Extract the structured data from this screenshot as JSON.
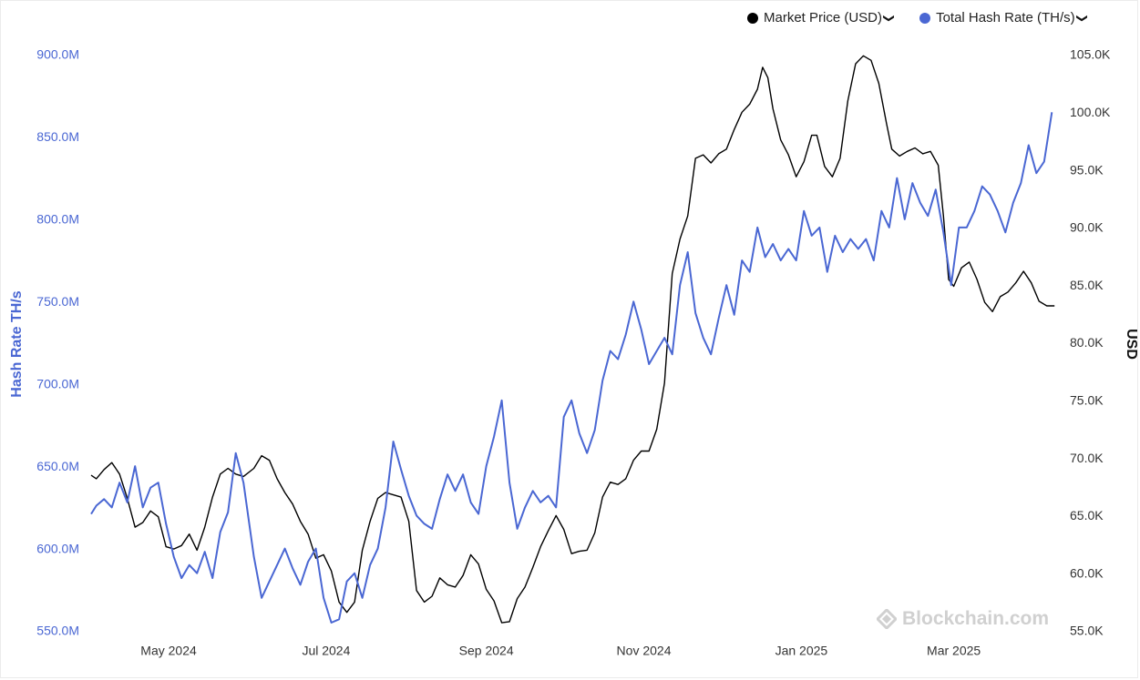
{
  "legend": {
    "price_label": "Market Price (USD)",
    "hash_label": "Total Hash Rate (TH/s)",
    "chevron": "❯"
  },
  "watermark": {
    "text": "Blockchain.com"
  },
  "colors": {
    "price": "#000000",
    "hash": "#4a67d3",
    "left_axis": "#4a67d3",
    "right_axis": "#333333"
  },
  "icons": {
    "watermark": "blockchain-logo-icon",
    "dropdown": "chevron-down-icon"
  },
  "chart_data": {
    "type": "line",
    "x_range": [
      "2024-04-01",
      "2025-04-10"
    ],
    "x_ticks": [
      {
        "date": "2024-05-01",
        "label": "May 2024"
      },
      {
        "date": "2024-07-01",
        "label": "Jul 2024"
      },
      {
        "date": "2024-09-01",
        "label": "Sep 2024"
      },
      {
        "date": "2024-11-01",
        "label": "Nov 2024"
      },
      {
        "date": "2025-01-01",
        "label": "Jan 2025"
      },
      {
        "date": "2025-03-01",
        "label": "Mar 2025"
      }
    ],
    "y_left": {
      "label": "Hash Rate TH/s",
      "range": [
        550,
        900
      ],
      "unit": "M",
      "ticks": [
        "550.0M",
        "600.0M",
        "650.0M",
        "700.0M",
        "750.0M",
        "800.0M",
        "850.0M",
        "900.0M"
      ]
    },
    "y_right": {
      "label": "USD",
      "range": [
        55,
        105
      ],
      "unit": "K",
      "ticks": [
        "55.0K",
        "60.0K",
        "65.0K",
        "70.0K",
        "75.0K",
        "80.0K",
        "85.0K",
        "90.0K",
        "95.0K",
        "100.0K",
        "105.0K"
      ]
    },
    "series": [
      {
        "name": "Market Price (USD)",
        "axis": "right",
        "color": "#000000",
        "unit": "thousand USD",
        "points": [
          [
            "2024-04-01",
            68.5
          ],
          [
            "2024-04-03",
            68.2
          ],
          [
            "2024-04-06",
            69.0
          ],
          [
            "2024-04-09",
            69.6
          ],
          [
            "2024-04-12",
            68.6
          ],
          [
            "2024-04-15",
            66.5
          ],
          [
            "2024-04-18",
            64.0
          ],
          [
            "2024-04-21",
            64.4
          ],
          [
            "2024-04-24",
            65.4
          ],
          [
            "2024-04-27",
            64.9
          ],
          [
            "2024-04-30",
            62.3
          ],
          [
            "2024-05-03",
            62.1
          ],
          [
            "2024-05-06",
            62.4
          ],
          [
            "2024-05-09",
            63.4
          ],
          [
            "2024-05-12",
            62.0
          ],
          [
            "2024-05-15",
            64.0
          ],
          [
            "2024-05-18",
            66.6
          ],
          [
            "2024-05-21",
            68.6
          ],
          [
            "2024-05-24",
            69.1
          ],
          [
            "2024-05-27",
            68.6
          ],
          [
            "2024-05-30",
            68.4
          ],
          [
            "2024-06-03",
            69.1
          ],
          [
            "2024-06-06",
            70.2
          ],
          [
            "2024-06-09",
            69.8
          ],
          [
            "2024-06-12",
            68.2
          ],
          [
            "2024-06-15",
            67.0
          ],
          [
            "2024-06-18",
            66.0
          ],
          [
            "2024-06-21",
            64.5
          ],
          [
            "2024-06-24",
            63.4
          ],
          [
            "2024-06-27",
            61.3
          ],
          [
            "2024-06-30",
            61.6
          ],
          [
            "2024-07-03",
            60.2
          ],
          [
            "2024-07-06",
            57.5
          ],
          [
            "2024-07-09",
            56.6
          ],
          [
            "2024-07-12",
            57.5
          ],
          [
            "2024-07-15",
            62.0
          ],
          [
            "2024-07-18",
            64.5
          ],
          [
            "2024-07-21",
            66.5
          ],
          [
            "2024-07-24",
            67.0
          ],
          [
            "2024-07-27",
            66.8
          ],
          [
            "2024-07-30",
            66.6
          ],
          [
            "2024-08-02",
            64.5
          ],
          [
            "2024-08-05",
            58.5
          ],
          [
            "2024-08-08",
            57.5
          ],
          [
            "2024-08-11",
            58.0
          ],
          [
            "2024-08-14",
            59.6
          ],
          [
            "2024-08-17",
            59.0
          ],
          [
            "2024-08-20",
            58.8
          ],
          [
            "2024-08-23",
            59.8
          ],
          [
            "2024-08-26",
            61.6
          ],
          [
            "2024-08-29",
            60.8
          ],
          [
            "2024-09-01",
            58.6
          ],
          [
            "2024-09-04",
            57.6
          ],
          [
            "2024-09-07",
            55.7
          ],
          [
            "2024-09-10",
            55.8
          ],
          [
            "2024-09-13",
            57.8
          ],
          [
            "2024-09-16",
            58.8
          ],
          [
            "2024-09-19",
            60.5
          ],
          [
            "2024-09-22",
            62.3
          ],
          [
            "2024-09-25",
            63.7
          ],
          [
            "2024-09-28",
            65.0
          ],
          [
            "2024-10-01",
            63.8
          ],
          [
            "2024-10-04",
            61.7
          ],
          [
            "2024-10-07",
            61.9
          ],
          [
            "2024-10-10",
            62.0
          ],
          [
            "2024-10-13",
            63.5
          ],
          [
            "2024-10-16",
            66.6
          ],
          [
            "2024-10-19",
            67.9
          ],
          [
            "2024-10-22",
            67.7
          ],
          [
            "2024-10-25",
            68.2
          ],
          [
            "2024-10-28",
            69.8
          ],
          [
            "2024-10-31",
            70.6
          ],
          [
            "2024-11-03",
            70.6
          ],
          [
            "2024-11-06",
            72.5
          ],
          [
            "2024-11-09",
            76.5
          ],
          [
            "2024-11-12",
            86.0
          ],
          [
            "2024-11-15",
            89.0
          ],
          [
            "2024-11-18",
            91.0
          ],
          [
            "2024-11-21",
            96.0
          ],
          [
            "2024-11-24",
            96.3
          ],
          [
            "2024-11-27",
            95.6
          ],
          [
            "2024-11-30",
            96.4
          ],
          [
            "2024-12-03",
            96.8
          ],
          [
            "2024-12-06",
            98.5
          ],
          [
            "2024-12-09",
            100.0
          ],
          [
            "2024-12-12",
            100.7
          ],
          [
            "2024-12-15",
            102.0
          ],
          [
            "2024-12-17",
            103.9
          ],
          [
            "2024-12-19",
            103.0
          ],
          [
            "2024-12-21",
            100.3
          ],
          [
            "2024-12-24",
            97.6
          ],
          [
            "2024-12-27",
            96.3
          ],
          [
            "2024-12-30",
            94.4
          ],
          [
            "2025-01-02",
            95.7
          ],
          [
            "2025-01-05",
            98.0
          ],
          [
            "2025-01-07",
            98.0
          ],
          [
            "2025-01-10",
            95.3
          ],
          [
            "2025-01-13",
            94.4
          ],
          [
            "2025-01-16",
            96.0
          ],
          [
            "2025-01-19",
            101.0
          ],
          [
            "2025-01-22",
            104.2
          ],
          [
            "2025-01-25",
            104.9
          ],
          [
            "2025-01-28",
            104.5
          ],
          [
            "2025-01-31",
            102.5
          ],
          [
            "2025-02-03",
            99.0
          ],
          [
            "2025-02-05",
            96.8
          ],
          [
            "2025-02-08",
            96.2
          ],
          [
            "2025-02-11",
            96.6
          ],
          [
            "2025-02-14",
            96.9
          ],
          [
            "2025-02-17",
            96.4
          ],
          [
            "2025-02-20",
            96.6
          ],
          [
            "2025-02-23",
            95.4
          ],
          [
            "2025-02-25",
            91.0
          ],
          [
            "2025-02-27",
            85.5
          ],
          [
            "2025-03-01",
            84.9
          ],
          [
            "2025-03-04",
            86.5
          ],
          [
            "2025-03-07",
            87.0
          ],
          [
            "2025-03-10",
            85.5
          ],
          [
            "2025-03-13",
            83.5
          ],
          [
            "2025-03-16",
            82.7
          ],
          [
            "2025-03-19",
            84.0
          ],
          [
            "2025-03-22",
            84.4
          ],
          [
            "2025-03-25",
            85.2
          ],
          [
            "2025-03-28",
            86.2
          ],
          [
            "2025-03-31",
            85.2
          ],
          [
            "2025-04-03",
            83.6
          ],
          [
            "2025-04-06",
            83.2
          ],
          [
            "2025-04-09",
            83.2
          ]
        ]
      },
      {
        "name": "Total Hash Rate (TH/s)",
        "axis": "left",
        "color": "#4a67d3",
        "unit": "million TH/s",
        "points": [
          [
            "2024-04-01",
            621
          ],
          [
            "2024-04-03",
            626
          ],
          [
            "2024-04-06",
            630
          ],
          [
            "2024-04-09",
            625
          ],
          [
            "2024-04-12",
            640
          ],
          [
            "2024-04-15",
            628
          ],
          [
            "2024-04-18",
            650
          ],
          [
            "2024-04-21",
            625
          ],
          [
            "2024-04-24",
            637
          ],
          [
            "2024-04-27",
            640
          ],
          [
            "2024-04-30",
            615
          ],
          [
            "2024-05-03",
            595
          ],
          [
            "2024-05-06",
            582
          ],
          [
            "2024-05-09",
            590
          ],
          [
            "2024-05-12",
            585
          ],
          [
            "2024-05-15",
            598
          ],
          [
            "2024-05-18",
            582
          ],
          [
            "2024-05-21",
            610
          ],
          [
            "2024-05-24",
            622
          ],
          [
            "2024-05-27",
            658
          ],
          [
            "2024-05-30",
            640
          ],
          [
            "2024-06-03",
            595
          ],
          [
            "2024-06-06",
            570
          ],
          [
            "2024-06-09",
            580
          ],
          [
            "2024-06-12",
            590
          ],
          [
            "2024-06-15",
            600
          ],
          [
            "2024-06-18",
            588
          ],
          [
            "2024-06-21",
            578
          ],
          [
            "2024-06-24",
            592
          ],
          [
            "2024-06-27",
            600
          ],
          [
            "2024-06-30",
            570
          ],
          [
            "2024-07-03",
            555
          ],
          [
            "2024-07-06",
            557
          ],
          [
            "2024-07-09",
            580
          ],
          [
            "2024-07-12",
            585
          ],
          [
            "2024-07-15",
            570
          ],
          [
            "2024-07-18",
            590
          ],
          [
            "2024-07-21",
            600
          ],
          [
            "2024-07-24",
            625
          ],
          [
            "2024-07-27",
            665
          ],
          [
            "2024-07-30",
            648
          ],
          [
            "2024-08-02",
            632
          ],
          [
            "2024-08-05",
            620
          ],
          [
            "2024-08-08",
            615
          ],
          [
            "2024-08-11",
            612
          ],
          [
            "2024-08-14",
            630
          ],
          [
            "2024-08-17",
            645
          ],
          [
            "2024-08-20",
            635
          ],
          [
            "2024-08-23",
            645
          ],
          [
            "2024-08-26",
            628
          ],
          [
            "2024-08-29",
            621
          ],
          [
            "2024-09-01",
            650
          ],
          [
            "2024-09-04",
            668
          ],
          [
            "2024-09-07",
            690
          ],
          [
            "2024-09-10",
            640
          ],
          [
            "2024-09-13",
            612
          ],
          [
            "2024-09-16",
            625
          ],
          [
            "2024-09-19",
            635
          ],
          [
            "2024-09-22",
            628
          ],
          [
            "2024-09-25",
            632
          ],
          [
            "2024-09-28",
            625
          ],
          [
            "2024-10-01",
            680
          ],
          [
            "2024-10-04",
            690
          ],
          [
            "2024-10-07",
            670
          ],
          [
            "2024-10-10",
            658
          ],
          [
            "2024-10-13",
            672
          ],
          [
            "2024-10-16",
            702
          ],
          [
            "2024-10-19",
            720
          ],
          [
            "2024-10-22",
            715
          ],
          [
            "2024-10-25",
            730
          ],
          [
            "2024-10-28",
            750
          ],
          [
            "2024-10-31",
            733
          ],
          [
            "2024-11-03",
            712
          ],
          [
            "2024-11-06",
            720
          ],
          [
            "2024-11-09",
            728
          ],
          [
            "2024-11-12",
            718
          ],
          [
            "2024-11-15",
            760
          ],
          [
            "2024-11-18",
            780
          ],
          [
            "2024-11-21",
            743
          ],
          [
            "2024-11-24",
            728
          ],
          [
            "2024-11-27",
            718
          ],
          [
            "2024-11-30",
            740
          ],
          [
            "2024-12-03",
            760
          ],
          [
            "2024-12-06",
            742
          ],
          [
            "2024-12-09",
            775
          ],
          [
            "2024-12-12",
            768
          ],
          [
            "2024-12-15",
            795
          ],
          [
            "2024-12-18",
            777
          ],
          [
            "2024-12-21",
            785
          ],
          [
            "2024-12-24",
            775
          ],
          [
            "2024-12-27",
            782
          ],
          [
            "2024-12-30",
            775
          ],
          [
            "2025-01-02",
            805
          ],
          [
            "2025-01-05",
            790
          ],
          [
            "2025-01-08",
            795
          ],
          [
            "2025-01-11",
            768
          ],
          [
            "2025-01-14",
            790
          ],
          [
            "2025-01-17",
            780
          ],
          [
            "2025-01-20",
            788
          ],
          [
            "2025-01-23",
            782
          ],
          [
            "2025-01-26",
            788
          ],
          [
            "2025-01-29",
            775
          ],
          [
            "2025-02-01",
            805
          ],
          [
            "2025-02-04",
            795
          ],
          [
            "2025-02-07",
            825
          ],
          [
            "2025-02-10",
            800
          ],
          [
            "2025-02-13",
            822
          ],
          [
            "2025-02-16",
            810
          ],
          [
            "2025-02-19",
            802
          ],
          [
            "2025-02-22",
            818
          ],
          [
            "2025-02-25",
            792
          ],
          [
            "2025-02-28",
            760
          ],
          [
            "2025-03-03",
            795
          ],
          [
            "2025-03-06",
            795
          ],
          [
            "2025-03-09",
            805
          ],
          [
            "2025-03-12",
            820
          ],
          [
            "2025-03-15",
            815
          ],
          [
            "2025-03-18",
            805
          ],
          [
            "2025-03-21",
            792
          ],
          [
            "2025-03-24",
            810
          ],
          [
            "2025-03-27",
            822
          ],
          [
            "2025-03-30",
            845
          ],
          [
            "2025-04-02",
            828
          ],
          [
            "2025-04-05",
            835
          ],
          [
            "2025-04-08",
            865
          ]
        ]
      }
    ]
  }
}
